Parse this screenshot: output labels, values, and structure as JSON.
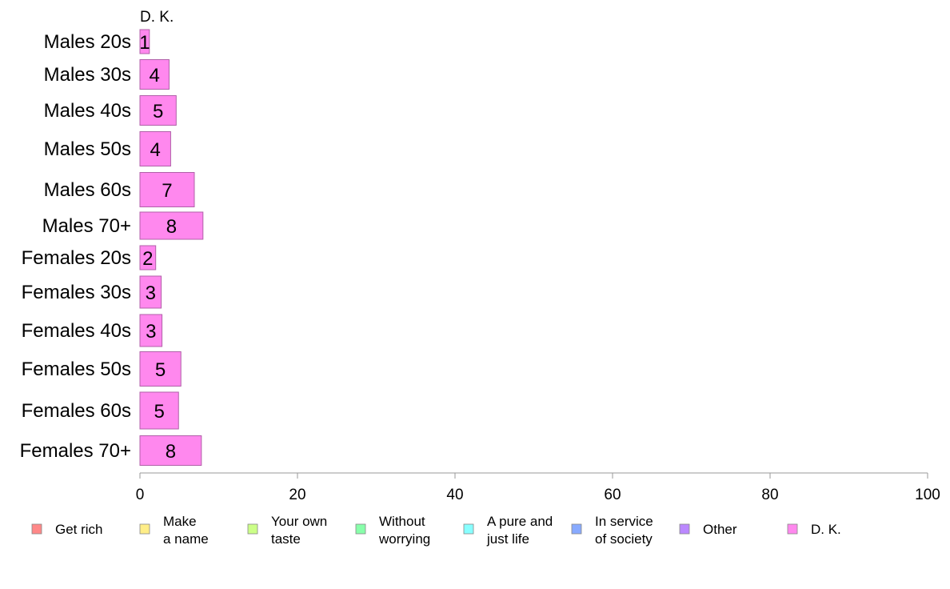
{
  "chart_data": {
    "type": "bar",
    "orientation": "horizontal",
    "stacked": true,
    "series_header": "D. K.",
    "categories": [
      "Males 20s",
      "Males 30s",
      "Males 40s",
      "Males 50s",
      "Males 60s",
      "Males 70+",
      "Females 20s",
      "Females 30s",
      "Females 40s",
      "Females 50s",
      "Females 60s",
      "Females 70+"
    ],
    "series": [
      {
        "name": "D. K.",
        "color": "#ff88ee",
        "values": [
          1.2,
          3.7,
          4.6,
          3.9,
          6.9,
          8.0,
          2.0,
          2.7,
          2.8,
          5.2,
          4.9,
          7.8
        ],
        "labels": [
          "1",
          "4",
          "5",
          "4",
          "7",
          "8",
          "2",
          "3",
          "3",
          "5",
          "5",
          "8"
        ]
      }
    ],
    "xlim": [
      0,
      100
    ],
    "xticks": [
      0,
      20,
      40,
      60,
      80,
      100
    ],
    "xtick_labels": [
      "0",
      "20",
      "40",
      "60",
      "80",
      "100"
    ],
    "grid": false,
    "legend_position": "bottom",
    "legend": [
      {
        "label": "Get rich",
        "color": "#ff8888"
      },
      {
        "label": "Make\na name",
        "color": "#ffee88"
      },
      {
        "label": "Your own\ntaste",
        "color": "#ccff88"
      },
      {
        "label": "Without\nworrying",
        "color": "#88ffaa"
      },
      {
        "label": "A pure and\njust life",
        "color": "#88ffff"
      },
      {
        "label": "In service\nof society",
        "color": "#88aaff"
      },
      {
        "label": "Other",
        "color": "#bb88ff"
      },
      {
        "label": "D. K.",
        "color": "#ff88ee"
      }
    ]
  }
}
